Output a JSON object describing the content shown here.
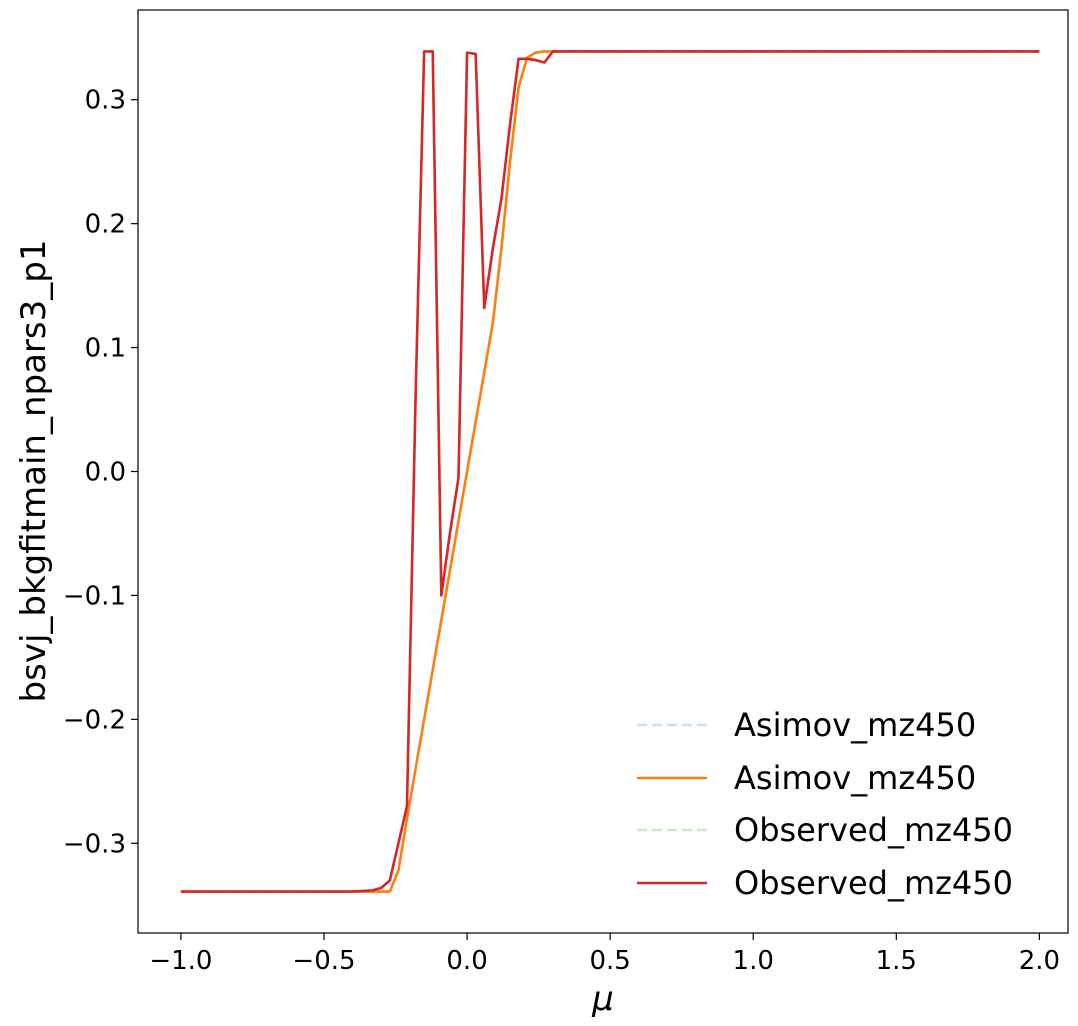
{
  "chart_data": {
    "type": "line",
    "title": "",
    "xlabel": "μ",
    "ylabel": "bsvj_bkgfitmain_npars3_p1",
    "xlim": [
      -1.15,
      2.1
    ],
    "ylim": [
      -0.3724,
      0.3724
    ],
    "xticks": [
      -1.0,
      -0.5,
      0.0,
      0.5,
      1.0,
      1.5,
      2.0
    ],
    "xtick_labels": [
      "−1.0",
      "−0.5",
      "0.0",
      "0.5",
      "1.0",
      "1.5",
      "2.0"
    ],
    "yticks": [
      -0.3,
      -0.2,
      -0.1,
      0.0,
      0.1,
      0.2,
      0.3
    ],
    "ytick_labels": [
      "−0.3",
      "−0.2",
      "−0.1",
      "0.0",
      "0.1",
      "0.2",
      "0.3"
    ],
    "grid": false,
    "legend_position": "lower-right",
    "series": [
      {
        "name": "Asimov_mz450",
        "color": "#c6e2ef",
        "dash": "dashed",
        "x": [
          -1.0,
          -0.3,
          -0.27,
          -0.24,
          -0.21,
          -0.18,
          -0.15,
          -0.12,
          -0.09,
          -0.06,
          -0.03,
          0.0,
          0.03,
          0.06,
          0.09,
          0.12,
          0.15,
          0.18,
          0.21,
          0.24,
          0.27,
          0.3,
          0.35,
          0.5,
          1.0,
          1.5,
          2.0
        ],
        "y": [
          -0.339,
          -0.339,
          -0.339,
          -0.322,
          -0.28,
          -0.24,
          -0.2,
          -0.16,
          -0.12,
          -0.08,
          -0.04,
          0.0,
          0.04,
          0.08,
          0.12,
          0.18,
          0.25,
          0.31,
          0.334,
          0.338,
          0.339,
          0.339,
          0.339,
          0.339,
          0.339,
          0.339,
          0.339
        ]
      },
      {
        "name": "Asimov_mz450",
        "color": "#ff7f0e",
        "dash": "solid",
        "x": [
          -1.0,
          -0.3,
          -0.27,
          -0.24,
          -0.21,
          -0.18,
          -0.15,
          -0.12,
          -0.09,
          -0.06,
          -0.03,
          0.0,
          0.03,
          0.06,
          0.09,
          0.12,
          0.15,
          0.18,
          0.21,
          0.24,
          0.27,
          0.3,
          0.35,
          0.5,
          1.0,
          1.5,
          2.0
        ],
        "y": [
          -0.339,
          -0.339,
          -0.339,
          -0.322,
          -0.28,
          -0.24,
          -0.2,
          -0.16,
          -0.12,
          -0.08,
          -0.04,
          0.0,
          0.04,
          0.08,
          0.12,
          0.18,
          0.25,
          0.31,
          0.334,
          0.338,
          0.339,
          0.339,
          0.339,
          0.339,
          0.339,
          0.339,
          0.339
        ]
      },
      {
        "name": "Observed_mz450",
        "color": "#c7e9c0",
        "dash": "dashed",
        "x": [
          -1.0,
          -0.5,
          -0.4,
          -0.33,
          -0.3,
          -0.27,
          -0.24,
          -0.21,
          -0.18,
          -0.15,
          -0.12,
          -0.09,
          -0.06,
          -0.03,
          0.0,
          0.03,
          0.06,
          0.09,
          0.12,
          0.15,
          0.18,
          0.21,
          0.24,
          0.27,
          0.3,
          0.33,
          0.5,
          1.0,
          1.5,
          2.0
        ],
        "y": [
          -0.339,
          -0.339,
          -0.339,
          -0.338,
          -0.336,
          -0.33,
          -0.3,
          -0.27,
          0.06,
          0.339,
          0.339,
          -0.1,
          -0.05,
          -0.005,
          0.338,
          0.337,
          0.132,
          0.18,
          0.22,
          0.28,
          0.333,
          0.333,
          0.332,
          0.33,
          0.339,
          0.339,
          0.339,
          0.339,
          0.339,
          0.339
        ]
      },
      {
        "name": "Observed_mz450",
        "color": "#d62728",
        "dash": "solid",
        "x": [
          -1.0,
          -0.5,
          -0.4,
          -0.33,
          -0.3,
          -0.27,
          -0.24,
          -0.21,
          -0.18,
          -0.15,
          -0.12,
          -0.09,
          -0.06,
          -0.03,
          0.0,
          0.03,
          0.06,
          0.09,
          0.12,
          0.15,
          0.18,
          0.21,
          0.24,
          0.27,
          0.3,
          0.33,
          0.5,
          1.0,
          1.5,
          2.0
        ],
        "y": [
          -0.339,
          -0.339,
          -0.339,
          -0.338,
          -0.336,
          -0.33,
          -0.3,
          -0.27,
          0.06,
          0.339,
          0.339,
          -0.1,
          -0.05,
          -0.005,
          0.338,
          0.337,
          0.132,
          0.18,
          0.22,
          0.28,
          0.333,
          0.333,
          0.332,
          0.33,
          0.339,
          0.339,
          0.339,
          0.339,
          0.339,
          0.339
        ]
      }
    ]
  }
}
